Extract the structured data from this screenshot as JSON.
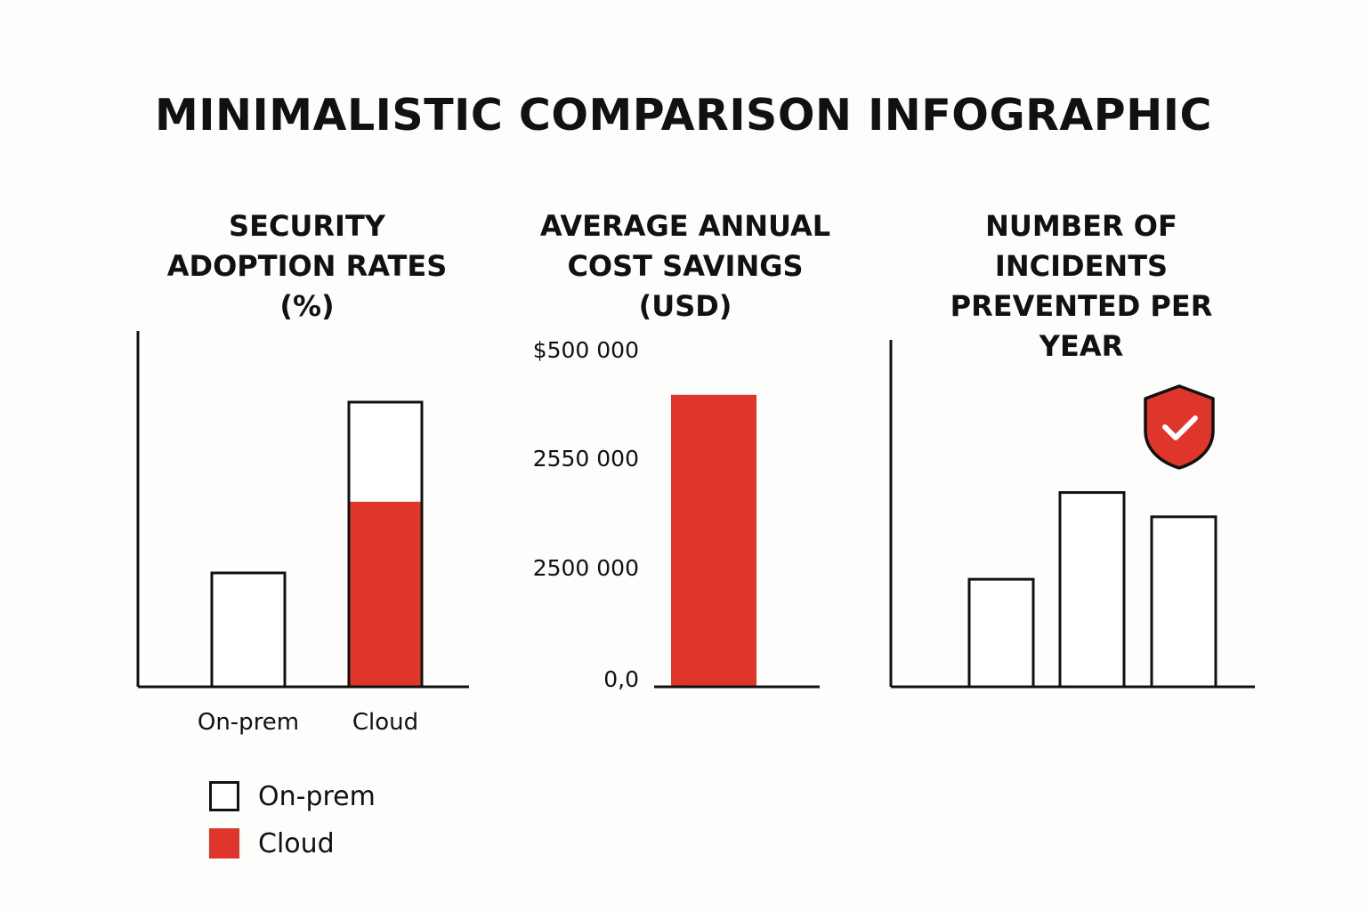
{
  "title": "MINIMALISTIC COMPARISON INFOGRAPHIC",
  "colors": {
    "cloud": "#e0352b",
    "outline": "#111111",
    "background": "#fdfdfb"
  },
  "legend": [
    {
      "label": "On-prem",
      "style": "outline"
    },
    {
      "label": "Cloud",
      "style": "filled"
    }
  ],
  "icons": {
    "shield": "shield-check-icon"
  },
  "chart_data": [
    {
      "type": "bar",
      "title": "SECURITY ADOPTION RATES (%)",
      "categories": [
        "On-prem",
        "Cloud"
      ],
      "series": [
        {
          "name": "On-prem",
          "values": [
            32,
            80
          ]
        },
        {
          "name": "Cloud",
          "values": [
            0,
            52
          ]
        }
      ],
      "xlabel": "",
      "ylabel": "",
      "ylim": [
        0,
        100
      ]
    },
    {
      "type": "bar",
      "title": "AVERAGE ANNUAL COST SAVINGS (USD)",
      "categories": [
        ""
      ],
      "values": [
        0.95
      ],
      "y_tick_labels": [
        "0,0",
        "2500 000",
        "2550 000",
        "$500 000"
      ],
      "ylim": [
        0,
        1.1
      ],
      "xlabel": "",
      "ylabel": ""
    },
    {
      "type": "bar",
      "title": "NUMBER OF INCIDENTS PREVENTED PER YEAR",
      "categories": [
        "",
        "",
        ""
      ],
      "values": [
        31,
        56,
        49
      ],
      "ylim": [
        0,
        100
      ],
      "xlabel": "",
      "ylabel": ""
    }
  ]
}
